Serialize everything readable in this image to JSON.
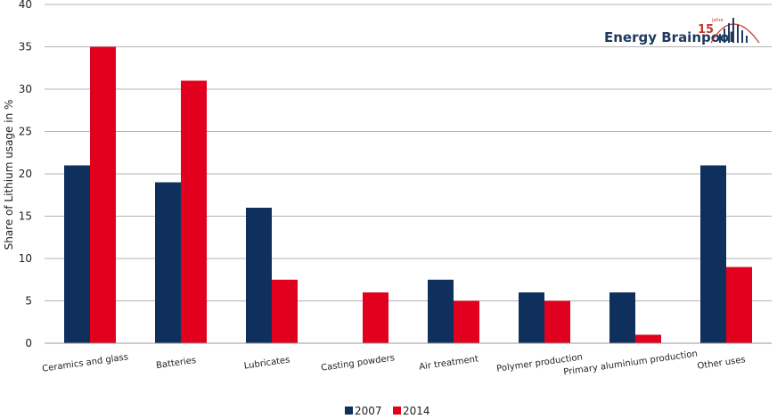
{
  "chart_data": {
    "type": "bar",
    "title": "",
    "xlabel": "",
    "ylabel": "Share of Lithium usage in %",
    "ylim": [
      0,
      40
    ],
    "yticks": [
      0,
      5,
      10,
      15,
      20,
      25,
      30,
      35,
      40
    ],
    "grid": true,
    "legend_position": "bottom",
    "categories": [
      "Ceramics and glass",
      "Batteries",
      "Lubricates",
      "Casting powders",
      "Air treatment",
      "Polymer production",
      "Primary aluminium production",
      "Other uses"
    ],
    "series": [
      {
        "name": "2007",
        "color": "#0f2f5c",
        "values": [
          21,
          19,
          16,
          0,
          7.5,
          6,
          6,
          21
        ]
      },
      {
        "name": "2014",
        "color": "#e1001e",
        "values": [
          35,
          31,
          7.5,
          6,
          5,
          5,
          1,
          9
        ]
      }
    ]
  },
  "logo": {
    "text": "Energy Brainpool",
    "badge_number": "15",
    "badge_word": "Jahre",
    "icon": "signal-bars-icon",
    "colors": {
      "text": "#1f3a5f",
      "accent": "#c0392b"
    }
  }
}
